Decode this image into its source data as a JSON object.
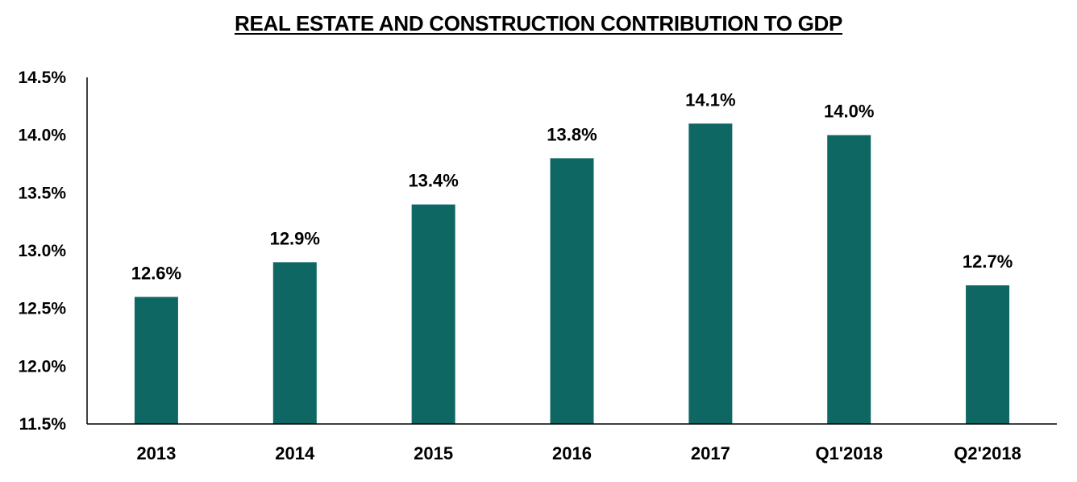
{
  "chart_data": {
    "type": "bar",
    "title": "REAL ESTATE AND CONSTRUCTION CONTRIBUTION  TO GDP",
    "xlabel": "",
    "ylabel": "",
    "categories": [
      "2013",
      "2014",
      "2015",
      "2016",
      "2017",
      "Q1'2018",
      "Q2'2018"
    ],
    "values": [
      12.6,
      12.9,
      13.4,
      13.8,
      14.1,
      14.0,
      12.7
    ],
    "data_labels": [
      "12.6%",
      "12.9%",
      "13.4%",
      "13.8%",
      "14.1%",
      "14.0%",
      "12.7%"
    ],
    "ylim": [
      11.5,
      14.5
    ],
    "yticks": [
      11.5,
      12.0,
      12.5,
      13.0,
      13.5,
      14.0,
      14.5
    ],
    "ytick_labels": [
      "11.5%",
      "12.0%",
      "12.5%",
      "13.0%",
      "13.5%",
      "14.0%",
      "14.5%"
    ],
    "grid": false,
    "legend": "none",
    "bar_color": "#0f6764",
    "axis_color": "#000000"
  }
}
